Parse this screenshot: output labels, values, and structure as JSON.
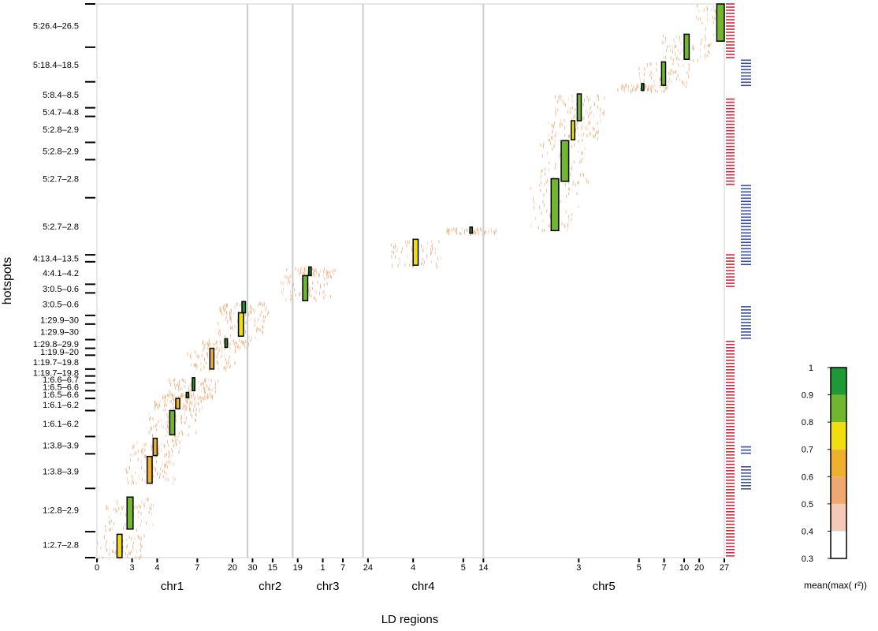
{
  "chart_data": {
    "type": "heatmap",
    "xlabel": "LD regions",
    "ylabel": "hotspots",
    "colorbar": {
      "label": "mean(max( r²))",
      "range": [
        0.3,
        1
      ],
      "ticks": [
        "0.3",
        "0.4",
        "0.5",
        "0.6",
        "0.7",
        "0.8",
        "0.9",
        "1"
      ],
      "bins": [
        {
          "from": 0.3,
          "to": 0.4,
          "color": "#ffffff"
        },
        {
          "from": 0.4,
          "to": 0.5,
          "color": "#f4c9b8"
        },
        {
          "from": 0.5,
          "to": 0.6,
          "color": "#efa871"
        },
        {
          "from": 0.6,
          "to": 0.7,
          "color": "#efb02d"
        },
        {
          "from": 0.7,
          "to": 0.8,
          "color": "#f2de0c"
        },
        {
          "from": 0.8,
          "to": 0.9,
          "color": "#72b52e"
        },
        {
          "from": 0.9,
          "to": 1.0,
          "color": "#1d9a36"
        }
      ]
    },
    "chromosomes": [
      {
        "name": "chr1",
        "x_start": 0,
        "x_end": 30
      },
      {
        "name": "chr2",
        "x_start": 30,
        "x_end": 39
      },
      {
        "name": "chr3",
        "x_start": 39,
        "x_end": 53
      },
      {
        "name": "chr4",
        "x_start": 53,
        "x_end": 77
      },
      {
        "name": "chr5",
        "x_start": 77,
        "x_end": 125
      }
    ],
    "x_tick_labels": [
      {
        "label": "0",
        "x": 0
      },
      {
        "label": "3",
        "x": 7
      },
      {
        "label": "4",
        "x": 12
      },
      {
        "label": "7",
        "x": 20
      },
      {
        "label": "20",
        "x": 27
      },
      {
        "label": "30",
        "x": 31
      },
      {
        "label": "15",
        "x": 35
      },
      {
        "label": "19",
        "x": 40
      },
      {
        "label": "1",
        "x": 45
      },
      {
        "label": "7",
        "x": 49
      },
      {
        "label": "24",
        "x": 54
      },
      {
        "label": "4",
        "x": 63
      },
      {
        "label": "5",
        "x": 73
      },
      {
        "label": "14",
        "x": 77
      },
      {
        "label": "3",
        "x": 96
      },
      {
        "label": "5",
        "x": 108
      },
      {
        "label": "7",
        "x": 113
      },
      {
        "label": "10",
        "x": 117
      },
      {
        "label": "20",
        "x": 120
      },
      {
        "label": "27",
        "x": 125
      }
    ],
    "hotspots": [
      {
        "label": "1:2.7–2.8",
        "y_start": 0,
        "y_end": 3
      },
      {
        "label": "1:2.8–2.9",
        "y_start": 3,
        "y_end": 8
      },
      {
        "label": "1:3.8–3.9",
        "y_start": 8,
        "y_end": 12
      },
      {
        "label": "1:3.8–3.9",
        "y_start": 12,
        "y_end": 14
      },
      {
        "label": "1:6.1–6.2",
        "y_start": 14,
        "y_end": 17
      },
      {
        "label": "1:6.1–6.2",
        "y_start": 17,
        "y_end": 18.4
      },
      {
        "label": "1:6.5–6.6",
        "y_start": 18.4,
        "y_end": 19.3
      },
      {
        "label": "1:6.5–6.6",
        "y_start": 19.3,
        "y_end": 20.2
      },
      {
        "label": "1:6.6–6.7",
        "y_start": 20.2,
        "y_end": 21
      },
      {
        "label": "1:19.7–19.8",
        "y_start": 21,
        "y_end": 21.8
      },
      {
        "label": "1:19.7–19.8",
        "y_start": 21.8,
        "y_end": 23.4
      },
      {
        "label": "1:19.9–20",
        "y_start": 23.4,
        "y_end": 24.2
      },
      {
        "label": "1:29.8–29.9",
        "y_start": 24.2,
        "y_end": 25.2
      },
      {
        "label": "1:29.9–30",
        "y_start": 25.2,
        "y_end": 27
      },
      {
        "label": "1:29.9–30",
        "y_start": 27,
        "y_end": 28
      },
      {
        "label": "3:0.5–0.6",
        "y_start": 28,
        "y_end": 30.6
      },
      {
        "label": "3:0.5–0.6",
        "y_start": 30.6,
        "y_end": 31.6
      },
      {
        "label": "4:4.1–4.2",
        "y_start": 31.6,
        "y_end": 34.2
      },
      {
        "label": "4:13.4–13.5",
        "y_start": 34.2,
        "y_end": 35
      },
      {
        "label": "5:2.7–2.8",
        "y_start": 35,
        "y_end": 41.6
      },
      {
        "label": "5:2.7–2.8",
        "y_start": 41.6,
        "y_end": 46
      },
      {
        "label": "5:2.8–2.9",
        "y_start": 46,
        "y_end": 48
      },
      {
        "label": "5:2.8–2.9",
        "y_start": 48,
        "y_end": 51
      },
      {
        "label": "5:4.7–4.8",
        "y_start": 51,
        "y_end": 52
      },
      {
        "label": "5:8.4–8.5",
        "y_start": 52,
        "y_end": 55
      },
      {
        "label": "5:18.4–18.5",
        "y_start": 55,
        "y_end": 59
      },
      {
        "label": "5:26.4–26.5",
        "y_start": 59,
        "y_end": 64
      }
    ],
    "y_range": [
      0,
      64
    ],
    "x_range": [
      0,
      125
    ],
    "side_bars": [
      {
        "color": "#d7263d",
        "y_start": 0,
        "y_end": 25
      },
      {
        "color": "#3a4fa0",
        "y_start": 7.8,
        "y_end": 10.5
      },
      {
        "color": "#3a4fa0",
        "y_start": 11.8,
        "y_end": 12.8
      },
      {
        "color": "#3a4fa0",
        "y_start": 25,
        "y_end": 29
      },
      {
        "color": "#3a4fa0",
        "y_start": 33.6,
        "y_end": 43
      },
      {
        "color": "#d7263d",
        "y_start": 31,
        "y_end": 35
      },
      {
        "color": "#d7263d",
        "y_start": 43,
        "y_end": 53
      },
      {
        "color": "#3a4fa0",
        "y_start": 54.5,
        "y_end": 57.5
      },
      {
        "color": "#d7263d",
        "y_start": 57.5,
        "y_end": 64
      }
    ],
    "blocks": [
      {
        "x": 4,
        "x2": 5,
        "y": 0,
        "y2": 2.7,
        "value": 0.75,
        "boxed": true
      },
      {
        "x": 6,
        "x2": 7.2,
        "y": 3.3,
        "y2": 7,
        "value": 0.9,
        "boxed": true
      },
      {
        "x": 10,
        "x2": 11,
        "y": 8.6,
        "y2": 11.7,
        "value": 0.65,
        "boxed": true
      },
      {
        "x": 11.2,
        "x2": 12,
        "y": 11.8,
        "y2": 13.8,
        "value": 0.7,
        "boxed": true
      },
      {
        "x": 14.5,
        "x2": 15.5,
        "y": 14.2,
        "y2": 17,
        "value": 0.85,
        "boxed": true
      },
      {
        "x": 15.7,
        "x2": 16.5,
        "y": 17.2,
        "y2": 18.4,
        "value": 0.7,
        "boxed": true
      },
      {
        "x": 17.8,
        "x2": 18.2,
        "y": 18.5,
        "y2": 19.1,
        "value": 0.95,
        "boxed": true
      },
      {
        "x": 19,
        "x2": 19.5,
        "y": 19.3,
        "y2": 20.8,
        "value": 0.95,
        "boxed": true
      },
      {
        "x": 22.5,
        "x2": 23.3,
        "y": 21.8,
        "y2": 24.2,
        "value": 0.7,
        "boxed": true
      },
      {
        "x": 25.5,
        "x2": 26,
        "y": 24.3,
        "y2": 25.3,
        "value": 0.95,
        "boxed": true
      },
      {
        "x": 28.2,
        "x2": 29.2,
        "y": 25.6,
        "y2": 28.3,
        "value": 0.75,
        "boxed": true
      },
      {
        "x": 28.9,
        "x2": 29.6,
        "y": 28.3,
        "y2": 29.6,
        "value": 0.95,
        "boxed": true
      },
      {
        "x": 41,
        "x2": 42,
        "y": 29.7,
        "y2": 32.6,
        "value": 0.85,
        "boxed": true
      },
      {
        "x": 42.2,
        "x2": 42.7,
        "y": 32.6,
        "y2": 33.6,
        "value": 0.95,
        "boxed": true
      },
      {
        "x": 63,
        "x2": 64,
        "y": 33.8,
        "y2": 36.8,
        "value": 0.75,
        "boxed": true
      },
      {
        "x": 74.3,
        "x2": 74.8,
        "y": 37.5,
        "y2": 38.2,
        "value": 0.95,
        "boxed": true
      },
      {
        "x": 90.5,
        "x2": 92,
        "y": 37.8,
        "y2": 43.8,
        "value": 0.85,
        "boxed": true
      },
      {
        "x": 92.5,
        "x2": 94,
        "y": 43.5,
        "y2": 48.2,
        "value": 0.85,
        "boxed": true
      },
      {
        "x": 94.5,
        "x2": 95.2,
        "y": 48.3,
        "y2": 50.5,
        "value": 0.8,
        "boxed": true
      },
      {
        "x": 95.7,
        "x2": 96.5,
        "y": 50.5,
        "y2": 53.6,
        "value": 0.85,
        "boxed": true
      },
      {
        "x": 108.5,
        "x2": 108.9,
        "y": 54,
        "y2": 54.8,
        "value": 0.95,
        "boxed": true
      },
      {
        "x": 112.5,
        "x2": 113.3,
        "y": 54.6,
        "y2": 57.3,
        "value": 0.85,
        "boxed": true
      },
      {
        "x": 117,
        "x2": 118,
        "y": 57.6,
        "y2": 60.5,
        "value": 0.85,
        "boxed": true
      },
      {
        "x": 123.5,
        "x2": 125,
        "y": 59.7,
        "y2": 64,
        "value": 0.9,
        "boxed": true
      }
    ]
  }
}
